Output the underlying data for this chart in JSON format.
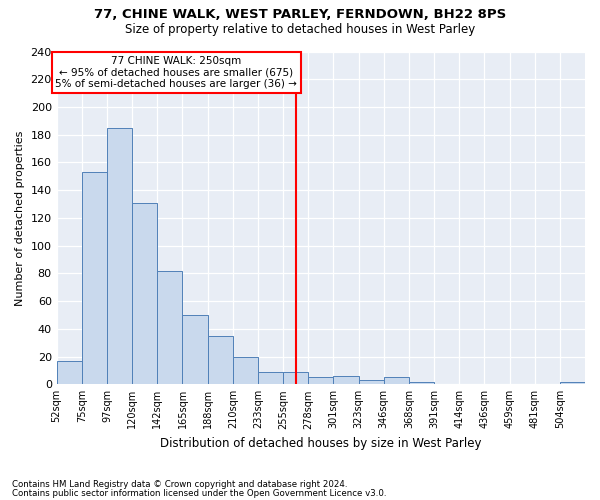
{
  "title1": "77, CHINE WALK, WEST PARLEY, FERNDOWN, BH22 8PS",
  "title2": "Size of property relative to detached houses in West Parley",
  "xlabel": "Distribution of detached houses by size in West Parley",
  "ylabel": "Number of detached properties",
  "bar_labels": [
    "52sqm",
    "75sqm",
    "97sqm",
    "120sqm",
    "142sqm",
    "165sqm",
    "188sqm",
    "210sqm",
    "233sqm",
    "255sqm",
    "278sqm",
    "301sqm",
    "323sqm",
    "346sqm",
    "368sqm",
    "391sqm",
    "414sqm",
    "436sqm",
    "459sqm",
    "481sqm",
    "504sqm"
  ],
  "bin_heights": [
    17,
    153,
    185,
    131,
    82,
    50,
    35,
    20,
    9,
    9,
    5,
    6,
    3,
    5,
    2,
    0,
    0,
    0,
    0,
    0,
    2
  ],
  "bar_color": "#c9d9ed",
  "bar_edge_color": "#5080b8",
  "vline_color": "red",
  "annotation_text": "77 CHINE WALK: 250sqm\n← 95% of detached houses are smaller (675)\n5% of semi-detached houses are larger (36) →",
  "footnote1": "Contains HM Land Registry data © Crown copyright and database right 2024.",
  "footnote2": "Contains public sector information licensed under the Open Government Licence v3.0.",
  "ylim": [
    0,
    240
  ],
  "yticks": [
    0,
    20,
    40,
    60,
    80,
    100,
    120,
    140,
    160,
    180,
    200,
    220,
    240
  ],
  "bg_color": "#e8edf5",
  "vline_index": 9
}
